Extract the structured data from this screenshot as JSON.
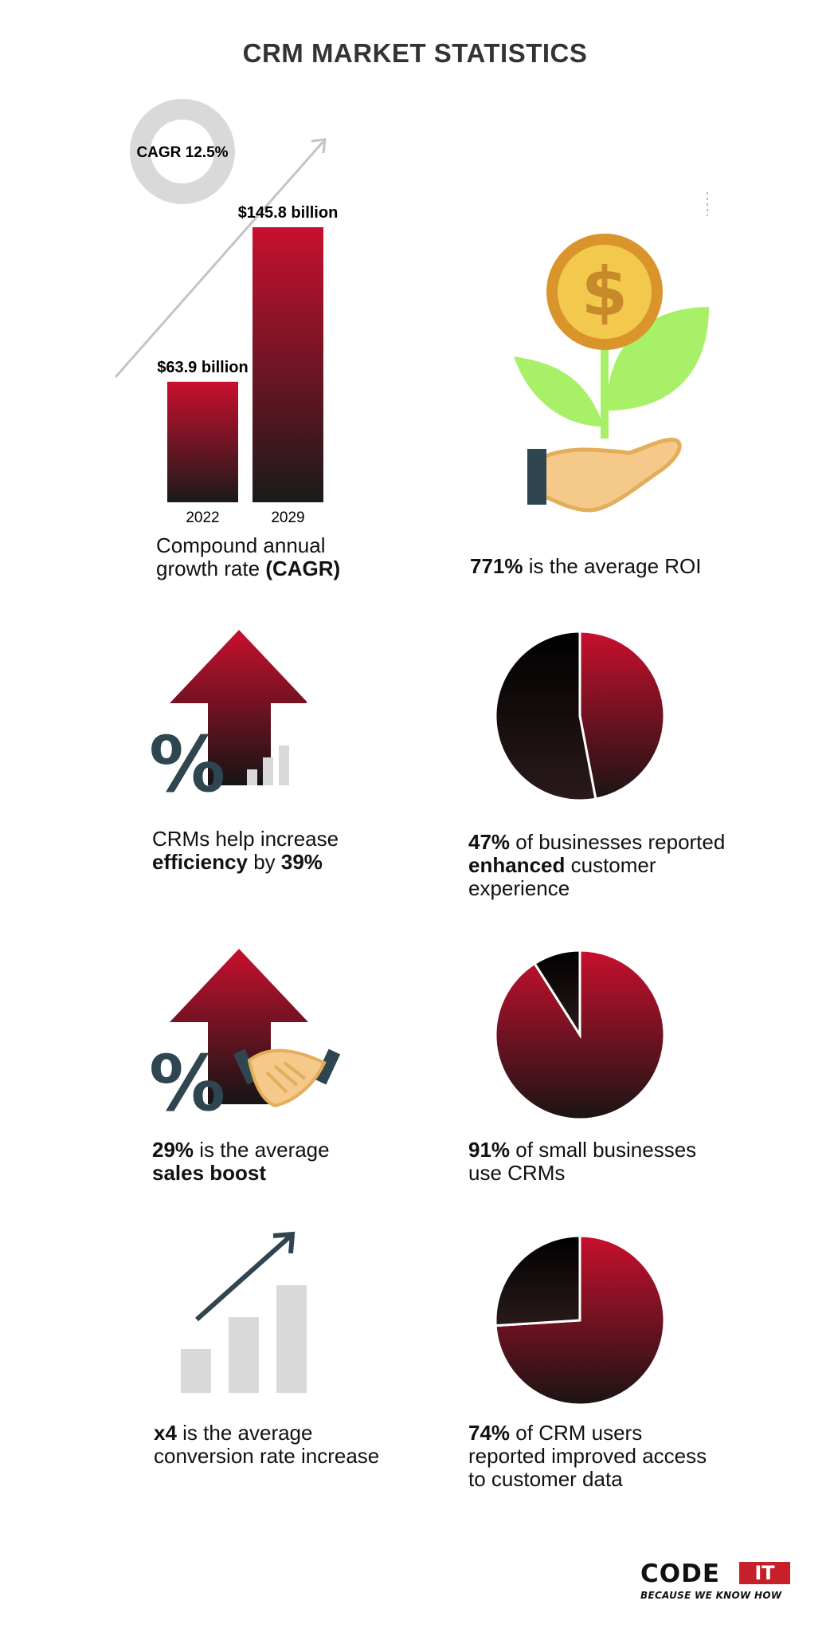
{
  "title": "CRM MARKET STATISTICS",
  "colors": {
    "accent_red": "#c8102e",
    "dark": "#151515",
    "slate": "#2f4650",
    "light_gray": "#d9d9d9",
    "green_leaf": "#a8f068",
    "coin_gold": "#f2c94c",
    "coin_rim": "#d9952c",
    "skin": "#f5c98a"
  },
  "cagr_badge": "CAGR 12.5%",
  "market_chart": {
    "chart_data": {
      "type": "bar",
      "categories": [
        "2022",
        "2029"
      ],
      "values": [
        63.9,
        145.8
      ],
      "value_labels": [
        "$63.9 billion",
        "$145.8 billion"
      ],
      "unit": "billion USD",
      "title": "",
      "xlabel": "",
      "ylabel": "",
      "ylim": [
        0,
        145.8
      ],
      "grid": false
    }
  },
  "stats": {
    "cagr": {
      "text": "Compound annual growth rate",
      "bold": "(CAGR)"
    },
    "roi": {
      "bold": "771%",
      "text": "is the average ROI"
    },
    "efficiency": {
      "text_a": "CRMs help increase",
      "bold_a": "efficiency",
      "text_b": "by",
      "bold_b": "39%"
    },
    "experience": {
      "bold_a": "47%",
      "text_a": "of businesses reported",
      "bold_b": "enhanced",
      "text_b": "customer experience"
    },
    "sales": {
      "bold_a": "29%",
      "text_a": "is the average",
      "bold_b": "sales boost"
    },
    "small_biz": {
      "bold": "91%",
      "text": "of small businesses use CRMs"
    },
    "conversion": {
      "bold": "x4",
      "text_a": "is the average",
      "text_b": "conversion rate increase"
    },
    "access": {
      "bold": "74%",
      "text": "of CRM users reported improved access to customer data"
    }
  },
  "pies": [
    {
      "chart_data": {
        "type": "pie",
        "values": [
          47,
          53
        ]
      }
    },
    {
      "chart_data": {
        "type": "pie",
        "values": [
          91,
          9
        ]
      }
    },
    {
      "chart_data": {
        "type": "pie",
        "values": [
          74,
          26
        ]
      }
    }
  ],
  "logo": {
    "code": "CODE",
    "it": "IT",
    "tagline": "BECAUSE WE KNOW HOW"
  }
}
